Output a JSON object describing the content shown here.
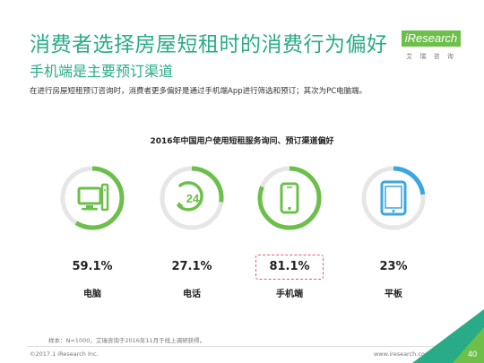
{
  "header": {
    "title": "消费者选择房屋短租时的消费行为偏好",
    "subtitle": "手机端是主要预订渠道",
    "description": "在进行房屋短租预订咨询时，消费者更多偏好是通过手机端App进行筛选和预订；其次为PC电脑端。"
  },
  "logo": {
    "text": "iResearch",
    "sub": "艾 瑞 咨 询"
  },
  "chart_data": {
    "type": "bar",
    "title": "2016年中国用户使用短租服务询问、预订渠道偏好",
    "categories": [
      "电脑",
      "电话",
      "手机端",
      "平板"
    ],
    "values": [
      59.1,
      27.1,
      81.1,
      23
    ],
    "value_labels": [
      "59.1%",
      "27.1%",
      "81.1%",
      "23%"
    ],
    "unit": "%",
    "highlighted_category": "手机端"
  },
  "icons": [
    "computer-icon",
    "phone-24-icon",
    "mobile-phone-icon",
    "tablet-icon"
  ],
  "colors": {
    "accent": "#2aab88",
    "green": "#6cc04a",
    "blue": "#3aa7df",
    "highlight": "#e25a73",
    "ring_track": "#e6e6e6"
  },
  "footer": {
    "note": "样本：N=1000，艾瑞咨询于2016年11月于线上调研获得。",
    "copyright": "©2017.1 iResearch Inc.",
    "site": "www.iresearch.com.cn",
    "page": "40"
  }
}
